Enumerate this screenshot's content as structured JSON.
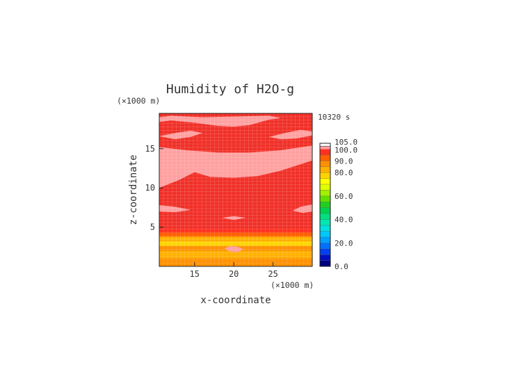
{
  "chart_data": {
    "type": "heatmap",
    "title": "Humidity of H2O-g",
    "timestamp": "10320 s",
    "xlabel": "x-coordinate",
    "ylabel": "z-coordinate",
    "x_unit": "(×1000 m)",
    "y_unit": "(×1000 m)",
    "xlim": [
      10.5,
      30
    ],
    "ylim": [
      0,
      19.5
    ],
    "x_ticks": [
      "15",
      "20",
      "25"
    ],
    "y_ticks": [
      "5",
      "10",
      "15"
    ],
    "grid": true,
    "colorbar": {
      "ticks": [
        "0.0",
        "20.0",
        "40.0",
        "60.0",
        "80.0",
        "90.0",
        "100.0",
        "105.0"
      ],
      "segments": [
        {
          "from": 0,
          "to": 5,
          "color": "#000080"
        },
        {
          "from": 5,
          "to": 10,
          "color": "#0010c0"
        },
        {
          "from": 10,
          "to": 15,
          "color": "#0040f0"
        },
        {
          "from": 15,
          "to": 20,
          "color": "#0070ff"
        },
        {
          "from": 20,
          "to": 25,
          "color": "#00a0ff"
        },
        {
          "from": 25,
          "to": 30,
          "color": "#00c8ff"
        },
        {
          "from": 30,
          "to": 35,
          "color": "#00e0e0"
        },
        {
          "from": 35,
          "to": 40,
          "color": "#00e8b0"
        },
        {
          "from": 40,
          "to": 45,
          "color": "#00e080"
        },
        {
          "from": 45,
          "to": 50,
          "color": "#00d050"
        },
        {
          "from": 50,
          "to": 55,
          "color": "#20d020"
        },
        {
          "from": 55,
          "to": 60,
          "color": "#60e000"
        },
        {
          "from": 60,
          "to": 65,
          "color": "#a0f000"
        },
        {
          "from": 65,
          "to": 70,
          "color": "#e0ff00"
        },
        {
          "from": 70,
          "to": 75,
          "color": "#ffff00"
        },
        {
          "from": 75,
          "to": 80,
          "color": "#ffd400"
        },
        {
          "from": 80,
          "to": 85,
          "color": "#ffb000"
        },
        {
          "from": 85,
          "to": 90,
          "color": "#ff9000"
        },
        {
          "from": 90,
          "to": 95,
          "color": "#ff6000"
        },
        {
          "from": 95,
          "to": 100,
          "color": "#ff3020"
        },
        {
          "from": 100,
          "to": 102.5,
          "color": "#ffa0a0"
        },
        {
          "from": 102.5,
          "to": 105,
          "color": "#ffffff"
        }
      ]
    },
    "background_band_color": "#f03028",
    "bands": [
      {
        "z_from": 0.0,
        "z_to": 1.0,
        "color": "#ff9000"
      },
      {
        "z_from": 1.0,
        "z_to": 2.0,
        "color": "#ffb000"
      },
      {
        "z_from": 2.0,
        "z_to": 2.6,
        "color": "#ff9000"
      },
      {
        "z_from": 2.6,
        "z_to": 3.2,
        "color": "#ffd400"
      },
      {
        "z_from": 3.2,
        "z_to": 3.8,
        "color": "#ffb000"
      },
      {
        "z_from": 3.8,
        "z_to": 4.3,
        "color": "#ff6000"
      },
      {
        "z_from": 4.3,
        "z_to": 4.8,
        "color": "#ff3020"
      }
    ],
    "patches": [
      {
        "points": [
          [
            10.5,
            18.4
          ],
          [
            12,
            18.6
          ],
          [
            15,
            18.3
          ],
          [
            18,
            17.9
          ],
          [
            20,
            17.8
          ],
          [
            22,
            18.0
          ],
          [
            24.5,
            18.7
          ],
          [
            26,
            18.9
          ],
          [
            24.5,
            19.2
          ],
          [
            20,
            19.1
          ],
          [
            16,
            19.0
          ],
          [
            12,
            19.2
          ],
          [
            10.5,
            19.0
          ]
        ]
      },
      {
        "points": [
          [
            10.5,
            16.6
          ],
          [
            12.5,
            17.0
          ],
          [
            14.5,
            17.3
          ],
          [
            16,
            17.0
          ],
          [
            14.5,
            16.5
          ],
          [
            12.5,
            16.2
          ]
        ]
      },
      {
        "points": [
          [
            24.5,
            16.5
          ],
          [
            26.5,
            17.0
          ],
          [
            28.5,
            17.4
          ],
          [
            30,
            17.2
          ],
          [
            30,
            16.7
          ],
          [
            28,
            16.3
          ],
          [
            26,
            16.2
          ]
        ]
      },
      {
        "points": [
          [
            10.5,
            15.2
          ],
          [
            14,
            14.8
          ],
          [
            18,
            14.5
          ],
          [
            22,
            14.5
          ],
          [
            26,
            14.8
          ],
          [
            30,
            15.4
          ],
          [
            30,
            13.5
          ],
          [
            26,
            12.2
          ],
          [
            23,
            11.5
          ],
          [
            20,
            11.3
          ],
          [
            17,
            11.4
          ],
          [
            15,
            12.0
          ],
          [
            13,
            11.0
          ],
          [
            11,
            10.2
          ],
          [
            10.5,
            10.0
          ]
        ]
      },
      {
        "points": [
          [
            10.5,
            7.8
          ],
          [
            12.5,
            7.6
          ],
          [
            14.5,
            7.2
          ],
          [
            12.5,
            6.9
          ],
          [
            10.5,
            7.0
          ]
        ]
      },
      {
        "points": [
          [
            27.5,
            7.1
          ],
          [
            28.5,
            7.6
          ],
          [
            30,
            7.9
          ],
          [
            30,
            7.0
          ],
          [
            28.8,
            6.8
          ]
        ]
      },
      {
        "points": [
          [
            18.5,
            6.2
          ],
          [
            20,
            6.4
          ],
          [
            21.5,
            6.2
          ],
          [
            20,
            5.9
          ]
        ]
      },
      {
        "points": [
          [
            18.8,
            2.3
          ],
          [
            19.5,
            2.6
          ],
          [
            20.5,
            2.5
          ],
          [
            21.2,
            2.2
          ],
          [
            20.5,
            1.8
          ],
          [
            19.5,
            1.9
          ]
        ]
      }
    ]
  }
}
